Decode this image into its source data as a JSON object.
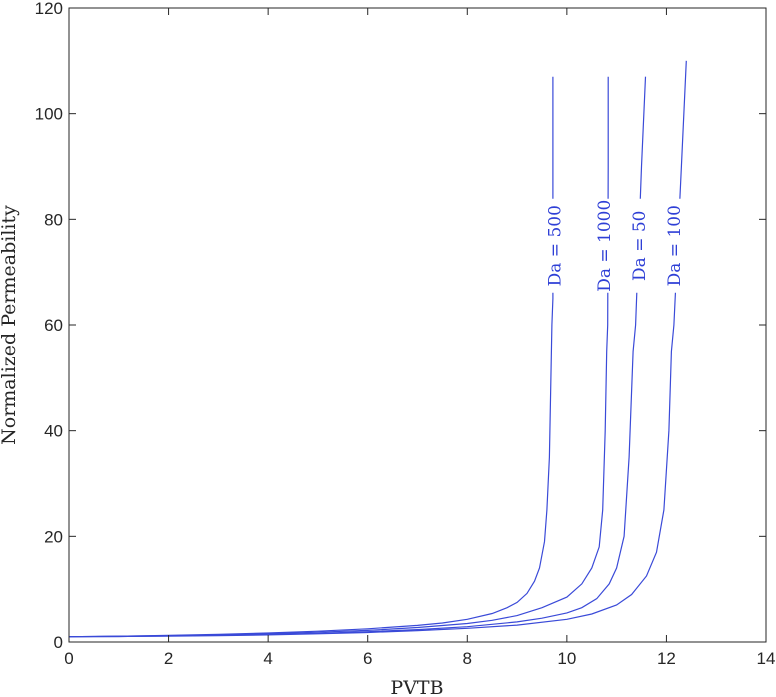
{
  "chart_data": {
    "type": "line",
    "xlabel": "PVTB",
    "ylabel": "Normalized Permeability",
    "xlim": [
      0,
      14
    ],
    "ylim": [
      0,
      120
    ],
    "xticks": [
      0,
      2,
      4,
      6,
      8,
      10,
      12,
      14
    ],
    "yticks": [
      0,
      20,
      40,
      60,
      80,
      100,
      120
    ],
    "grid": false,
    "color": "#3a4ad8",
    "series": [
      {
        "name": "Da = 500",
        "label_at": [
          9.75,
          75
        ],
        "x": [
          0,
          1,
          2,
          3,
          4,
          5,
          6,
          7,
          7.5,
          8,
          8.5,
          8.8,
          9.0,
          9.2,
          9.35,
          9.45,
          9.55,
          9.6,
          9.65,
          9.68,
          9.7,
          9.72,
          9.72,
          9.72
        ],
        "y": [
          1.0,
          1.1,
          1.25,
          1.45,
          1.7,
          2.05,
          2.5,
          3.15,
          3.6,
          4.3,
          5.4,
          6.5,
          7.5,
          9.2,
          11.5,
          14,
          19,
          25,
          35,
          50,
          60,
          65,
          90,
          107
        ]
      },
      {
        "name": "Da = 1000",
        "label_at": [
          10.75,
          75
        ],
        "x": [
          0,
          1,
          2,
          3,
          4,
          5,
          6,
          7,
          8,
          8.5,
          9,
          9.5,
          10,
          10.3,
          10.5,
          10.65,
          10.72,
          10.77,
          10.8,
          10.82,
          10.83,
          10.83
        ],
        "y": [
          1.0,
          1.1,
          1.2,
          1.35,
          1.55,
          1.85,
          2.2,
          2.75,
          3.5,
          4.1,
          5.0,
          6.5,
          8.5,
          11,
          14,
          18,
          25,
          40,
          55,
          60,
          90,
          107
        ]
      },
      {
        "name": "Da = 50",
        "label_at": [
          11.45,
          75
        ],
        "x": [
          0,
          1,
          2,
          3,
          4,
          5,
          6,
          7,
          8,
          9,
          9.5,
          10,
          10.3,
          10.6,
          10.85,
          11.0,
          11.15,
          11.25,
          11.33,
          11.38,
          11.5,
          11.58
        ],
        "y": [
          1.0,
          1.05,
          1.15,
          1.3,
          1.45,
          1.65,
          1.95,
          2.35,
          2.9,
          3.8,
          4.5,
          5.5,
          6.5,
          8.2,
          11,
          14,
          20,
          35,
          55,
          60,
          90,
          107
        ]
      },
      {
        "name": "Da = 100",
        "label_at": [
          12.15,
          75
        ],
        "x": [
          0,
          1,
          2,
          3,
          4,
          5,
          6,
          7,
          8,
          9,
          10,
          10.5,
          11,
          11.3,
          11.6,
          11.8,
          11.95,
          12.05,
          12.1,
          12.15,
          12.3,
          12.4
        ],
        "y": [
          1.0,
          1.05,
          1.1,
          1.2,
          1.35,
          1.55,
          1.8,
          2.15,
          2.6,
          3.2,
          4.3,
          5.3,
          7.0,
          9.0,
          12.5,
          17,
          25,
          40,
          55,
          60,
          90,
          110
        ]
      }
    ]
  }
}
